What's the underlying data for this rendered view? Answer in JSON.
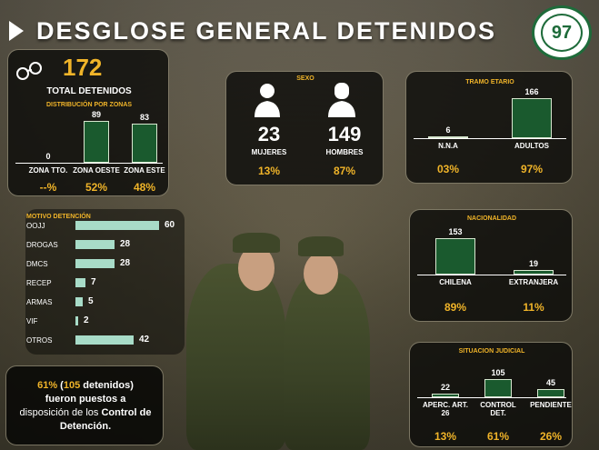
{
  "title": "DESGLOSE GENERAL DETENIDOS",
  "total": {
    "value": "172",
    "label": "TOTAL DETENIDOS",
    "zones_title": "DISTRIBUCIÓN POR ZONAS",
    "zones": [
      {
        "name": "ZONA TTO.",
        "value": "0",
        "pct": "--%",
        "n": 0
      },
      {
        "name": "ZONA OESTE",
        "value": "89",
        "pct": "52%",
        "n": 89
      },
      {
        "name": "ZONA ESTE",
        "value": "83",
        "pct": "48%",
        "n": 83
      }
    ]
  },
  "sexo": {
    "title": "SEXO",
    "mujeres": {
      "value": "23",
      "label": "MUJERES",
      "pct": "13%"
    },
    "hombres": {
      "value": "149",
      "label": "HOMBRES",
      "pct": "87%"
    }
  },
  "tramo": {
    "title": "TRAMO ETARIO",
    "items": [
      {
        "name": "N.N.A",
        "value": "6",
        "pct": "03%",
        "n": 6
      },
      {
        "name": "ADULTOS",
        "value": "166",
        "pct": "97%",
        "n": 166
      }
    ]
  },
  "motivo": {
    "title": "MOTIVO DETENCIÓN",
    "items": [
      {
        "name": "OOJJ",
        "value": "60",
        "n": 60
      },
      {
        "name": "DROGAS",
        "value": "28",
        "n": 28
      },
      {
        "name": "DMCS",
        "value": "28",
        "n": 28
      },
      {
        "name": "RECEP",
        "value": "7",
        "n": 7
      },
      {
        "name": "ARMAS",
        "value": "5",
        "n": 5
      },
      {
        "name": "VIF",
        "value": "2",
        "n": 2
      },
      {
        "name": "OTROS",
        "value": "42",
        "n": 42
      }
    ]
  },
  "nacionalidad": {
    "title": "NACIONALIDAD",
    "items": [
      {
        "name": "CHILENA",
        "value": "153",
        "pct": "89%",
        "n": 153
      },
      {
        "name": "EXTRANJERA",
        "value": "19",
        "pct": "11%",
        "n": 19
      }
    ]
  },
  "judicial": {
    "title": "SITUACION JUDICIAL",
    "items": [
      {
        "name": "APERC. ART. 26",
        "value": "22",
        "pct": "13%",
        "n": 22
      },
      {
        "name": "CONTROL DET.",
        "value": "105",
        "pct": "61%",
        "n": 105
      },
      {
        "name": "PENDIENTE",
        "value": "45",
        "pct": "26%",
        "n": 45
      }
    ]
  },
  "note": {
    "pct": "61%",
    "open": " (",
    "count": "105",
    "detenidos": " detenidos)",
    "line2": "fueron puestos a",
    "line3": "disposición de los ",
    "bold": "Control de Detención",
    "end": "."
  },
  "chart_data": [
    {
      "type": "bar",
      "title": "DISTRIBUCIÓN POR ZONAS",
      "categories": [
        "ZONA TTO.",
        "ZONA OESTE",
        "ZONA ESTE"
      ],
      "values": [
        0,
        89,
        83
      ]
    },
    {
      "type": "bar",
      "title": "SEXO",
      "categories": [
        "MUJERES",
        "HOMBRES"
      ],
      "values": [
        23,
        149
      ]
    },
    {
      "type": "bar",
      "title": "TRAMO ETARIO",
      "categories": [
        "N.N.A",
        "ADULTOS"
      ],
      "values": [
        6,
        166
      ]
    },
    {
      "type": "bar",
      "title": "MOTIVO DETENCIÓN",
      "categories": [
        "OOJJ",
        "DROGAS",
        "DMCS",
        "RECEP",
        "ARMAS",
        "VIF",
        "OTROS"
      ],
      "values": [
        60,
        28,
        28,
        7,
        5,
        2,
        42
      ]
    },
    {
      "type": "bar",
      "title": "NACIONALIDAD",
      "categories": [
        "CHILENA",
        "EXTRANJERA"
      ],
      "values": [
        153,
        19
      ]
    },
    {
      "type": "bar",
      "title": "SITUACION JUDICIAL",
      "categories": [
        "APERC. ART. 26",
        "CONTROL DET.",
        "PENDIENTE"
      ],
      "values": [
        22,
        105,
        45
      ]
    }
  ],
  "colors": {
    "bar": "#1a5a2e",
    "hbar": "#a8dcc8",
    "accent": "#f0b429"
  }
}
